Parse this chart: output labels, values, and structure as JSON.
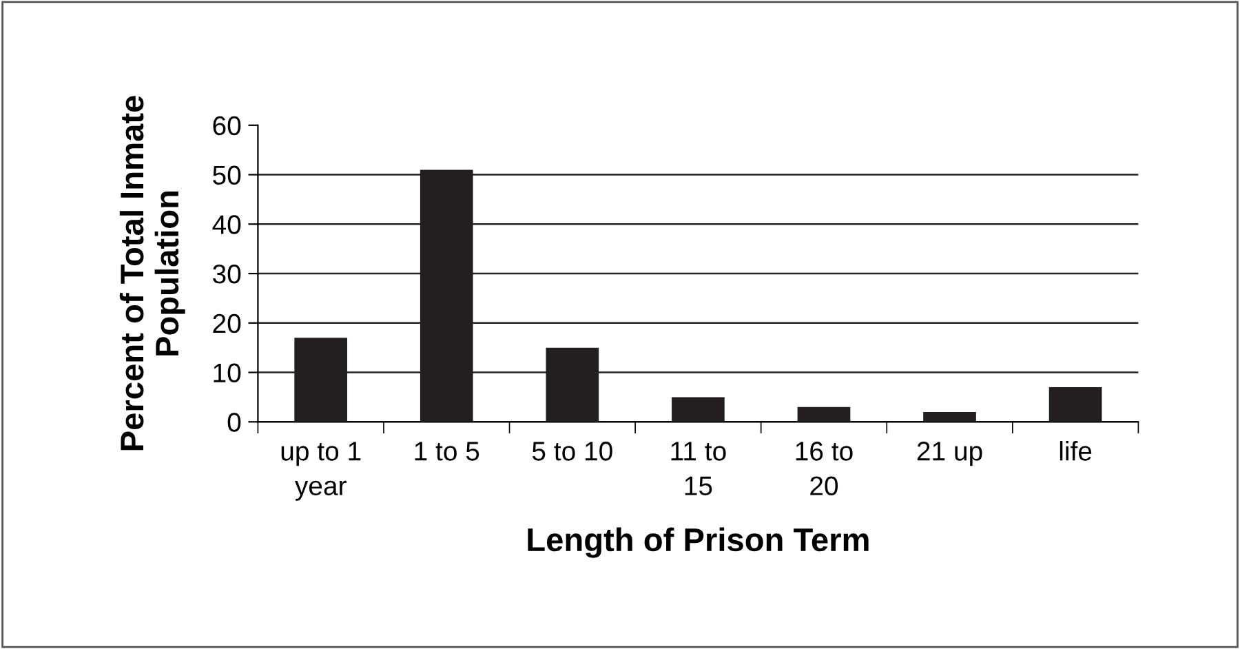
{
  "chart_data": {
    "type": "bar",
    "xlabel": "Length of Prison Term",
    "ylabel": "Percent of Total Inmate\nPopulation",
    "categories": [
      "up to 1\nyear",
      "1 to 5",
      "5 to 10",
      "11 to\n15",
      "16 to\n20",
      "21 up",
      "life"
    ],
    "values": [
      17,
      51,
      15,
      5,
      3,
      2,
      7
    ],
    "color": "#231f20",
    "ylim": [
      0,
      60
    ],
    "yticks": [
      0,
      10,
      20,
      30,
      40,
      50,
      60
    ],
    "grid": "y",
    "legend": false
  }
}
